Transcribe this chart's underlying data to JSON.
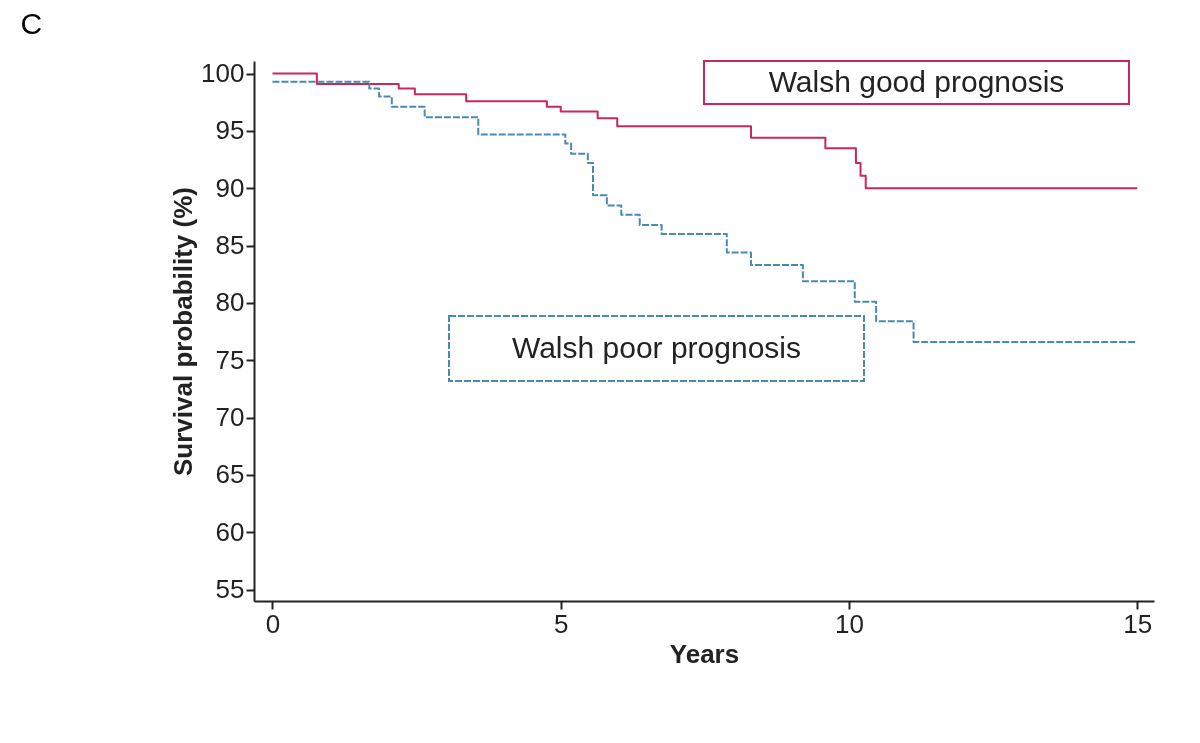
{
  "chart_data": {
    "type": "step",
    "title": "C",
    "xlabel": "Years",
    "ylabel": "Survival probability (%)",
    "xlim": [
      -0.32,
      15.29
    ],
    "xticks": [
      0,
      5,
      10,
      15
    ],
    "ylim": [
      54,
      101.1
    ],
    "yticks": [
      55,
      60,
      65,
      70,
      75,
      80,
      85,
      90,
      95,
      100
    ],
    "grid": false,
    "marker": "none",
    "series": [
      {
        "name": "Walsh good prognosis",
        "color": "#c8285a",
        "line_style": "solid",
        "x": [
          0,
          0.77,
          2.19,
          2.47,
          3.36,
          4.76,
          5.0,
          5.64,
          5.98,
          8.3,
          9.59,
          10.12,
          10.2,
          10.29,
          15
        ],
        "values": [
          100,
          99.1,
          98.7,
          98.2,
          97.6,
          97.1,
          96.7,
          96.1,
          95.4,
          94.4,
          93.5,
          92.2,
          91.1,
          90.0,
          90.0
        ]
      },
      {
        "name": "Walsh poor prognosis",
        "color": "#4a8ab0",
        "line_style": "dashed",
        "x": [
          0,
          1.68,
          1.85,
          2.07,
          2.64,
          3.57,
          5.08,
          5.18,
          5.47,
          5.56,
          5.8,
          6.05,
          6.37,
          6.75,
          7.88,
          8.3,
          9.2,
          10.1,
          10.47,
          11.12,
          15
        ],
        "values": [
          99.3,
          98.7,
          98.0,
          97.1,
          96.2,
          94.7,
          93.9,
          93.0,
          92.2,
          89.4,
          88.5,
          87.7,
          86.8,
          86.0,
          84.4,
          83.3,
          81.9,
          80.1,
          78.4,
          76.6,
          76.6
        ]
      }
    ]
  }
}
